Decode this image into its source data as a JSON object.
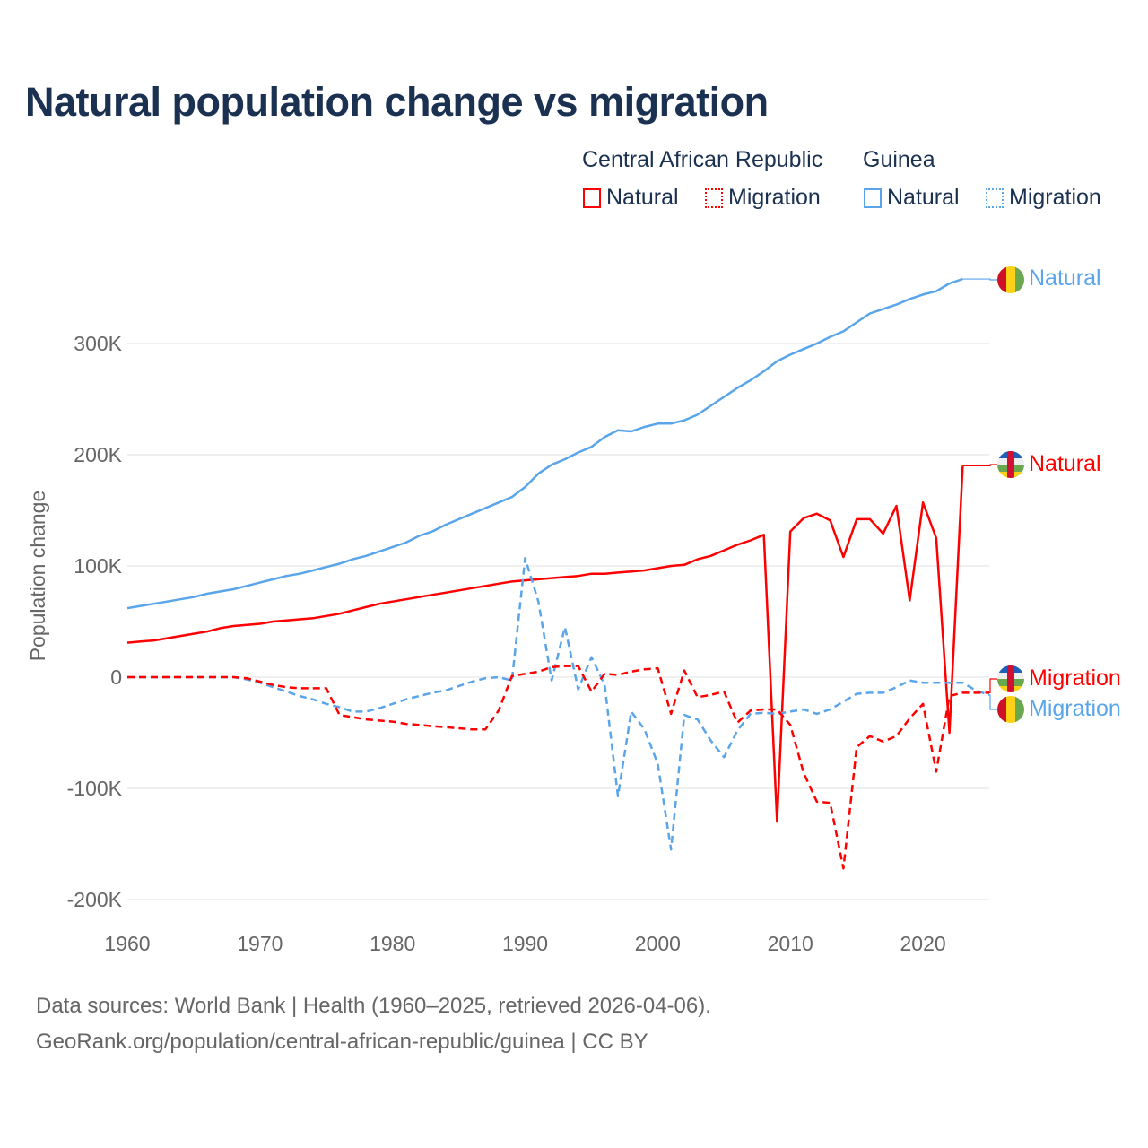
{
  "title": "Natural population change vs migration",
  "legend": {
    "groups": [
      {
        "name": "Central African Republic",
        "items": [
          "Natural",
          "Migration"
        ],
        "color": "#ff0000"
      },
      {
        "name": "Guinea",
        "items": [
          "Natural",
          "Migration"
        ],
        "color": "#5aa5ea"
      }
    ]
  },
  "footer": {
    "line1": "Data sources: World Bank | Health (1960–2025, retrieved 2026-04-06).",
    "line2": "GeoRank.org/population/central-african-republic/guinea | CC BY"
  },
  "end_labels": {
    "natural": "Natural",
    "migration": "Migration"
  },
  "chart_data": {
    "type": "line",
    "title": "Natural population change vs migration",
    "xlabel": "",
    "ylabel": "Population change",
    "xlim": [
      1960,
      2025
    ],
    "ylim": [
      -200000,
      360000
    ],
    "x_ticks": [
      "1960",
      "1970",
      "1980",
      "1990",
      "2000",
      "2010",
      "2020"
    ],
    "y_ticks": [
      {
        "value": 300000,
        "label": "300K"
      },
      {
        "value": 200000,
        "label": "200K"
      },
      {
        "value": 100000,
        "label": "100K"
      },
      {
        "value": 0,
        "label": "0"
      },
      {
        "value": -100000,
        "label": "-100K"
      },
      {
        "value": -200000,
        "label": "-200K"
      }
    ],
    "grid": true,
    "start_year": 1960,
    "unit": "thousands",
    "series": [
      {
        "name": "Guinea Natural",
        "country": "Guinea",
        "kind": "natural",
        "color": "#5aa5ea",
        "dashed": false,
        "values": [
          62,
          64,
          66,
          68,
          70,
          72,
          75,
          77,
          79,
          82,
          85,
          88,
          91,
          93,
          96,
          99,
          102,
          106,
          109,
          113,
          117,
          121,
          127,
          131,
          137,
          142,
          147,
          152,
          157,
          162,
          171,
          183,
          191,
          196,
          202,
          207,
          216,
          222,
          221,
          225,
          228,
          228,
          231,
          236,
          244,
          252,
          260,
          267,
          275,
          284,
          290,
          295,
          300,
          306,
          311,
          319,
          327,
          331,
          335,
          340,
          344,
          347,
          354,
          358
        ]
      },
      {
        "name": "Central African Republic Natural",
        "country": "Central African Republic",
        "kind": "natural",
        "color": "#ff0000",
        "dashed": false,
        "values": [
          31,
          32,
          33,
          35,
          37,
          39,
          41,
          44,
          46,
          47,
          48,
          50,
          51,
          52,
          53,
          55,
          57,
          60,
          63,
          66,
          68,
          70,
          72,
          74,
          76,
          78,
          80,
          82,
          84,
          86,
          87,
          88,
          89,
          90,
          91,
          93,
          93,
          94,
          95,
          96,
          98,
          100,
          101,
          106,
          109,
          114,
          119,
          123,
          128,
          -130,
          131,
          143,
          147,
          141,
          108,
          142,
          142,
          129,
          154,
          69,
          157,
          125,
          -50,
          190
        ]
      },
      {
        "name": "Central African Republic Migration",
        "country": "Central African Republic",
        "kind": "migration",
        "color": "#ff0000",
        "dashed": true,
        "values": [
          0,
          0,
          0,
          0,
          0,
          0,
          0,
          0,
          0,
          -1,
          -4,
          -7,
          -9,
          -10,
          -10,
          -10,
          -34,
          -36,
          -38,
          -39,
          -40,
          -42,
          -43,
          -44,
          -45,
          -46,
          -47,
          -47,
          -30,
          1,
          3,
          5,
          9,
          10,
          10,
          -13,
          3,
          2,
          5,
          7,
          8,
          -33,
          6,
          -18,
          -16,
          -13,
          -41,
          -30,
          -29,
          -29,
          -43,
          -86,
          -112,
          -113,
          -172,
          -63,
          -53,
          -58,
          -53,
          -37,
          -24,
          -85,
          -17,
          -14,
          -14,
          -14
        ]
      },
      {
        "name": "Guinea Migration",
        "country": "Guinea",
        "kind": "migration",
        "color": "#5aa5ea",
        "dashed": true,
        "values": [
          0,
          0,
          0,
          0,
          0,
          0,
          0,
          0,
          0,
          -2,
          -5,
          -9,
          -13,
          -17,
          -20,
          -24,
          -27,
          -31,
          -31,
          -28,
          -24,
          -20,
          -17,
          -14,
          -12,
          -8,
          -4,
          -1,
          0,
          -3,
          107,
          68,
          -3,
          45,
          -11,
          18,
          -7,
          -107,
          -31,
          -47,
          -78,
          -155,
          -34,
          -38,
          -57,
          -72,
          -48,
          -33,
          -32,
          -33,
          -31,
          -29,
          -33,
          -29,
          -22,
          -15,
          -14,
          -14,
          -9,
          -3,
          -5,
          -5,
          -5,
          -5,
          -12,
          -16
        ]
      }
    ]
  }
}
